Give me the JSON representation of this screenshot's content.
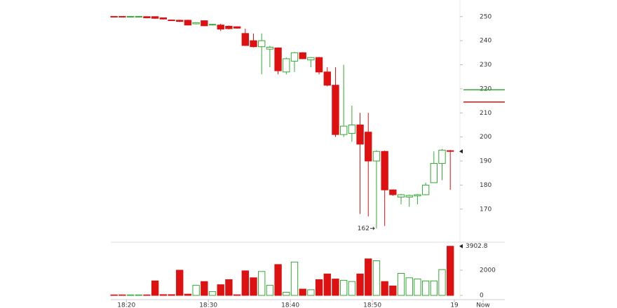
{
  "chart_data": {
    "type": "candlestick",
    "x": [
      18.5,
      19.5,
      20.5,
      21.5,
      22.5,
      23.5,
      24.5,
      25.5,
      26.5,
      27.5,
      28.5,
      29.5,
      30.5,
      31.5,
      32.5,
      33.5,
      34.5,
      35.5,
      36.5,
      37.5,
      38.5,
      39.5,
      40.5,
      41.5,
      42.5,
      43.5,
      44.5,
      45.5,
      46.5,
      47.5,
      48.5,
      49.5,
      50.5,
      51.5,
      52.5,
      53.5,
      54.5,
      55.5,
      56.5,
      57.5,
      58.5,
      59.5
    ],
    "open": [
      250.1,
      250.1,
      249.9,
      249.9,
      250,
      250,
      249.5,
      248.6,
      248.5,
      248.5,
      247,
      248.3,
      246.5,
      246.5,
      246,
      245.8,
      243,
      240,
      237.5,
      236.5,
      237,
      227,
      231.5,
      235,
      232,
      233,
      227,
      221.5,
      201,
      201.5,
      205,
      202,
      190,
      194,
      178,
      175,
      175,
      175.5,
      176,
      181,
      189,
      194.3
    ],
    "high": [
      250.2,
      250.2,
      250.2,
      250.2,
      250.1,
      250.1,
      249.6,
      248.8,
      248.7,
      248.7,
      247.7,
      248.5,
      247,
      247,
      246.3,
      246,
      245,
      243,
      243,
      237.8,
      237.2,
      233,
      235.3,
      235.2,
      233.2,
      233.3,
      229,
      229,
      230,
      213,
      210,
      210,
      194.5,
      194.3,
      178.2,
      176.3,
      176,
      176.3,
      181,
      194,
      195,
      194.6
    ],
    "low": [
      249.8,
      249.8,
      249.8,
      249.8,
      249.3,
      249.1,
      248.8,
      248.2,
      247.8,
      246.3,
      246.8,
      246,
      246.3,
      244,
      244.7,
      245,
      237.8,
      237.2,
      226,
      229,
      226,
      226,
      227,
      232.3,
      229,
      226,
      221,
      200,
      200,
      198,
      168,
      167,
      162,
      163,
      175.5,
      172,
      171,
      172,
      175.8,
      181,
      182,
      178
    ],
    "close": [
      249.9,
      249.9,
      250.1,
      250.1,
      249.5,
      249.3,
      249,
      248.4,
      248,
      246.5,
      247.5,
      246.2,
      246.8,
      244.8,
      245,
      245.2,
      238,
      237.5,
      240,
      237.3,
      227.5,
      232.5,
      235,
      232.5,
      233,
      227,
      221.5,
      201,
      204.5,
      205,
      197,
      190,
      194,
      178,
      176,
      176,
      175.7,
      176,
      180,
      189,
      194.5,
      194
    ],
    "up_color": "#33aa33",
    "down_color": "#dd1111",
    "xlim": [
      18.1,
      63.5
    ],
    "xticks": [
      {
        "value": 20,
        "label": "18:20"
      },
      {
        "value": 30,
        "label": "18:30"
      },
      {
        "value": 40,
        "label": "18:40"
      },
      {
        "value": 50,
        "label": "18:50"
      },
      {
        "value": 60,
        "label": "19"
      },
      {
        "value": 63.5,
        "label": "Now"
      }
    ],
    "ylim": [
      158,
      254
    ],
    "yticks": [
      170,
      180,
      190,
      200,
      210,
      220,
      230,
      240,
      250
    ],
    "levels": [
      {
        "value": 219.6,
        "color": "#33aa33"
      },
      {
        "value": 214.5,
        "color": "#dd1111"
      }
    ],
    "volume": {
      "values": [
        40,
        40,
        40,
        40,
        40,
        1150,
        60,
        60,
        2000,
        100,
        800,
        1100,
        300,
        850,
        1250,
        50,
        1950,
        1400,
        1900,
        800,
        2450,
        250,
        2650,
        500,
        450,
        1250,
        1700,
        1300,
        1200,
        1100,
        1700,
        2900,
        2750,
        1100,
        750,
        1750,
        1400,
        1300,
        1150,
        1150,
        2050,
        3902.8
      ],
      "ylim": [
        0,
        4000
      ],
      "yticks": [
        0,
        2000
      ]
    }
  }
}
